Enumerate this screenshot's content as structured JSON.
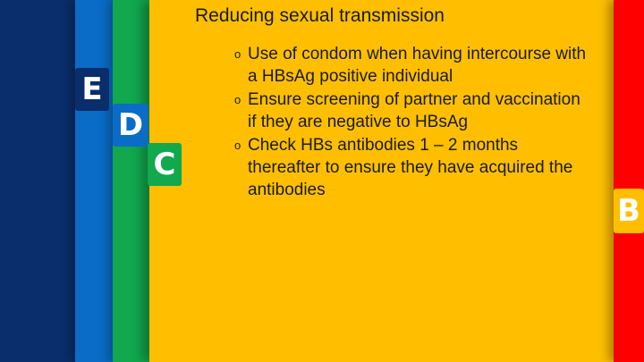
{
  "slide": {
    "heading": "Reducing sexual transmission",
    "bullets": [
      {
        "marker": "o",
        "text": "Use of condom when having intercourse with a HBsAg positive individual"
      },
      {
        "marker": "o",
        "text": "Ensure screening of partner and vaccination if they are negative to HBsAg"
      },
      {
        "marker": "o",
        "text": "Check HBs antibodies 1 – 2 months thereafter to ensure they have acquired the antibodies"
      }
    ]
  },
  "tabs": {
    "e": "E",
    "d": "D",
    "c": "C",
    "b": "B"
  },
  "colors": {
    "navy": "#0a2d6b",
    "blue": "#0a6cc6",
    "green": "#11a84e",
    "yellow": "#ffbf00",
    "red": "#ff0000"
  }
}
